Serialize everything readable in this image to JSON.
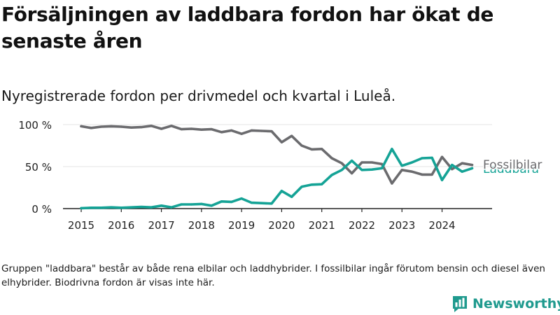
{
  "title": "Försäljningen av laddbara fordon har ökat de senaste åren",
  "subtitle": "Nyregistrerade fordon per drivmedel och kvartal i Luleå.",
  "note": "Gruppen \"laddbara\" består av både rena elbilar och laddhybrider. I fossilbilar ingår förutom bensin och diesel även elhybrider. Biodrivna fordon är visas inte här.",
  "brand": {
    "name": "Newsworthy",
    "color": "#1f9a8e"
  },
  "chart_data": {
    "type": "line",
    "title": "Försäljningen av laddbara fordon har ökat de senaste åren",
    "subtitle": "Nyregistrerade fordon per drivmedel och kvartal i Luleå.",
    "xlabel": "",
    "ylabel": "",
    "ylim": [
      0,
      100
    ],
    "y_unit": "%",
    "yticks": [
      0,
      50,
      100
    ],
    "ytick_labels": [
      "0 %",
      "50 %",
      "100 %"
    ],
    "xticks": [
      "2015",
      "2016",
      "2017",
      "2018",
      "2019",
      "2020",
      "2021",
      "2022",
      "2023",
      "2024"
    ],
    "x": [
      "2015Q1",
      "2015Q2",
      "2015Q3",
      "2015Q4",
      "2016Q1",
      "2016Q2",
      "2016Q3",
      "2016Q4",
      "2017Q1",
      "2017Q2",
      "2017Q3",
      "2017Q4",
      "2018Q1",
      "2018Q2",
      "2018Q3",
      "2018Q4",
      "2019Q1",
      "2019Q2",
      "2019Q3",
      "2019Q4",
      "2020Q1",
      "2020Q2",
      "2020Q3",
      "2020Q4",
      "2021Q1",
      "2021Q2",
      "2021Q3",
      "2021Q4",
      "2022Q1",
      "2022Q2",
      "2022Q3",
      "2022Q4",
      "2023Q1",
      "2023Q2",
      "2023Q3",
      "2023Q4",
      "2024Q1",
      "2024Q2",
      "2024Q3",
      "2024Q4"
    ],
    "grid": "horizontal",
    "legend": "direct labels at right end of lines",
    "series": [
      {
        "name": "Fossilbilar",
        "color": "#6b6b6e",
        "values": [
          98,
          96,
          97.5,
          98,
          97.5,
          96.5,
          97,
          98.5,
          95,
          98.5,
          94.5,
          95,
          94,
          94.5,
          91,
          93,
          89,
          93,
          92.5,
          92,
          79,
          86.5,
          75,
          70.5,
          71,
          60,
          54,
          42,
          55,
          55,
          53,
          30,
          46,
          44,
          40.5,
          40.5,
          61.5,
          47,
          54,
          52
        ]
      },
      {
        "name": "Laddbara",
        "color": "#15a396",
        "values": [
          0.5,
          1,
          1,
          1.5,
          1,
          1.5,
          2,
          1.5,
          3.5,
          1.5,
          5,
          5,
          5.5,
          3.5,
          8.5,
          8,
          12,
          7,
          6.5,
          6,
          21,
          14,
          26,
          28.5,
          29,
          40,
          46,
          57,
          46,
          46.5,
          48,
          71,
          51,
          55,
          60,
          60.5,
          34,
          52,
          44,
          48
        ]
      }
    ]
  }
}
